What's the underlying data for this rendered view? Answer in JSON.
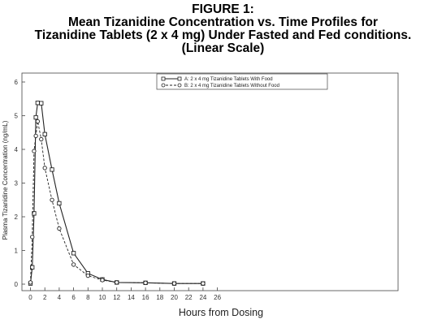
{
  "chart_data": {
    "type": "line",
    "title_lines": [
      "FIGURE 1:",
      "Mean Tizanidine Concentration vs. Time Profiles for",
      "Tizanidine Tablets (2 x 4 mg) Under Fasted and Fed conditions.",
      "(Linear Scale)"
    ],
    "xlabel": "Hours from Dosing",
    "ylabel": "Plasma Tizanidine Concentration  (ng/mL)",
    "xlim": [
      0,
      26
    ],
    "ylim": [
      0,
      6
    ],
    "xticks": [
      "0",
      "2",
      "4",
      "6",
      "8",
      "10",
      "12",
      "14",
      "16",
      "18",
      "20",
      "22",
      "24",
      "26"
    ],
    "yticks": [
      "0",
      "1",
      "2",
      "3",
      "4",
      "5",
      "6"
    ],
    "legend_position": "top-right",
    "series": [
      {
        "name": "A: 2 x 4 mg Tizanidine Tablets With Food",
        "style": "solid",
        "marker": "square",
        "x": [
          0,
          0.25,
          0.5,
          0.75,
          1,
          1.5,
          2,
          3,
          4,
          6,
          8,
          10,
          12,
          16,
          20,
          24
        ],
        "y": [
          0.02,
          0.5,
          2.1,
          4.95,
          5.38,
          5.37,
          4.45,
          3.4,
          2.4,
          0.92,
          0.32,
          0.14,
          0.05,
          0.04,
          0.02,
          0.02
        ]
      },
      {
        "name": "B: 2 x 4 mg Tizanidine Tablets Without Food",
        "style": "dashed",
        "marker": "circle",
        "x": [
          0,
          0.25,
          0.5,
          0.75,
          1,
          1.5,
          2,
          3,
          4,
          6,
          8,
          10,
          12,
          16,
          20,
          24
        ],
        "y": [
          0.05,
          1.4,
          3.95,
          4.4,
          4.83,
          4.3,
          3.45,
          2.5,
          1.65,
          0.58,
          0.25,
          0.12,
          0.05,
          0.04,
          0.02,
          0.02
        ]
      }
    ]
  }
}
